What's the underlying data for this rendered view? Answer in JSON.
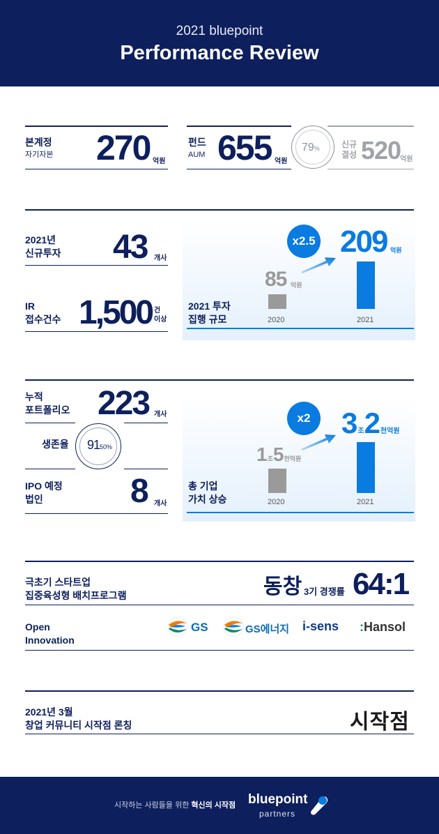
{
  "header": {
    "subtitle": "2021 bluepoint",
    "title": "Performance Review"
  },
  "section1": {
    "capital_label": "본계정",
    "capital_sub": "자기자본",
    "capital_value": "270",
    "capital_unit": "억원",
    "fund_label": "펀드",
    "fund_sub": "AUM",
    "fund_value": "655",
    "fund_unit": "억원",
    "ratio_value": "79",
    "ratio_unit": "%",
    "new_fund_label_1": "신규",
    "new_fund_label_2": "결성",
    "new_fund_value": "520",
    "new_fund_unit": "억원"
  },
  "section2": {
    "new_invest_label_1": "2021년",
    "new_invest_label_2": "신규투자",
    "new_invest_value": "43",
    "new_invest_unit": "개사",
    "ir_label_1": "IR",
    "ir_label_2": "접수건수",
    "ir_value": "1,500",
    "ir_unit_1": "건",
    "ir_unit_2": "이상",
    "chart_title_1": "2021 투자",
    "chart_title_2": "집행 규모",
    "multiplier": "x2.5",
    "value_2020": "85",
    "value_2020_unit": "억원",
    "value_2021": "209",
    "value_2021_unit": "억원",
    "year_1": "2020",
    "year_2": "2021"
  },
  "section3": {
    "portfolio_label_1": "누적",
    "portfolio_label_2": "포트폴리오",
    "portfolio_value": "223",
    "portfolio_unit": "개사",
    "survival_label": "생존율",
    "survival_value": "91",
    "survival_unit": "50%",
    "ipo_label_1": "IPO 예정",
    "ipo_label_2": "법인",
    "ipo_value": "8",
    "ipo_unit": "개사",
    "chart_title_1": "총 기업",
    "chart_title_2": "가치 상승",
    "multiplier": "x2",
    "v2020_a": "1",
    "v2020_mid": "조",
    "v2020_b": "5",
    "v2020_unit": "천억원",
    "v2021_a": "3",
    "v2021_mid": "조",
    "v2021_b": "2",
    "v2021_unit": "천억원",
    "year_1": "2020",
    "year_2": "2021"
  },
  "section4": {
    "program_label_1": "극초기 스타트업",
    "program_label_2": "집중육성형 배치프로그램",
    "program_name": "동창",
    "competition_label": "3기 경쟁률",
    "competition_value": "64:1",
    "open_label_1": "Open",
    "open_label_2": "Innovation",
    "partners": [
      "GS",
      "GS에너지",
      "i-sens",
      "Hansol"
    ]
  },
  "section5": {
    "launch_label_1": "2021년 3월",
    "launch_label_2": "창업 커뮤니티 시작점 론칭",
    "launch_name": "시작점"
  },
  "footer": {
    "slogan_prefix": "시작하는 사람들을 위한",
    "slogan_bold": "혁신의 시작점",
    "brand": "bluepoint",
    "brand_sub": "partners"
  },
  "colors": {
    "navy": "#0d1f5c",
    "accent": "#0a7be0",
    "grey": "#9a9a9a"
  }
}
